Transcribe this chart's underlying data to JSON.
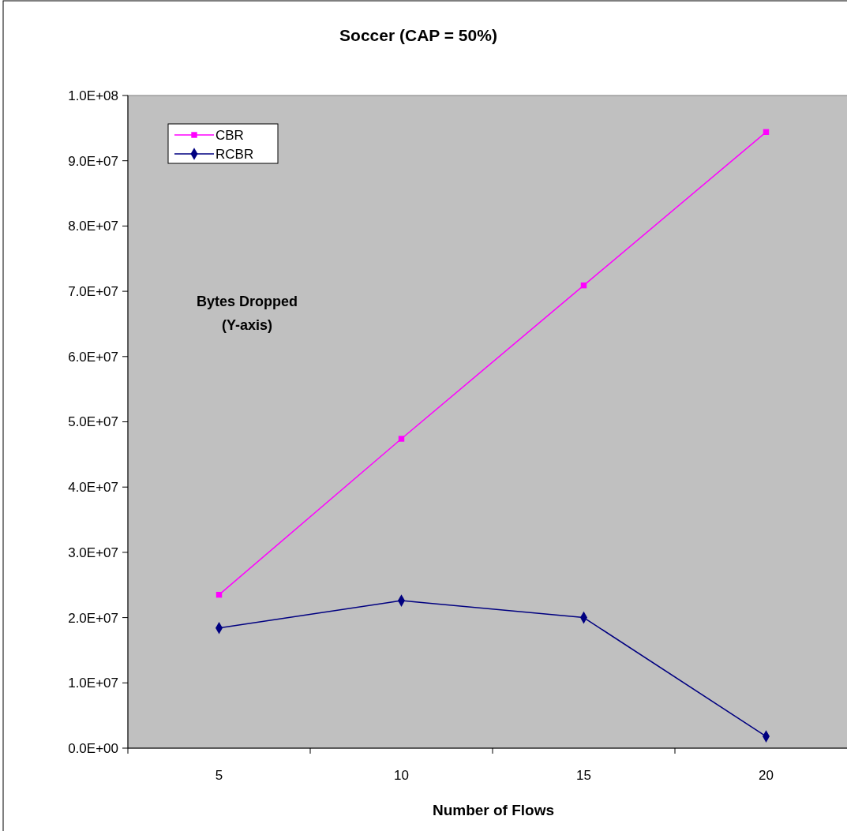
{
  "chart_data": {
    "type": "line",
    "title": "Soccer (CAP = 50%)",
    "xlabel": "Number of Flows",
    "ylabel": "Bytes Dropped\n(Y-axis)",
    "categories": [
      "5",
      "10",
      "15",
      "20"
    ],
    "series": [
      {
        "name": "CBR",
        "color": "#ff00ff",
        "marker": "square",
        "values": [
          23500000,
          47400000,
          70900000,
          94400000
        ]
      },
      {
        "name": "RCBR",
        "color": "#000080",
        "marker": "diamond",
        "values": [
          18400000,
          22600000,
          20000000,
          1800000
        ]
      }
    ],
    "ylim": [
      0,
      100000000
    ],
    "yticks": [
      {
        "value": 0,
        "label": "0.0E+00"
      },
      {
        "value": 10000000,
        "label": "1.0E+07"
      },
      {
        "value": 20000000,
        "label": "2.0E+07"
      },
      {
        "value": 30000000,
        "label": "3.0E+07"
      },
      {
        "value": 40000000,
        "label": "4.0E+07"
      },
      {
        "value": 50000000,
        "label": "5.0E+07"
      },
      {
        "value": 60000000,
        "label": "6.0E+07"
      },
      {
        "value": 70000000,
        "label": "7.0E+07"
      },
      {
        "value": 80000000,
        "label": "8.0E+07"
      },
      {
        "value": 90000000,
        "label": "9.0E+07"
      },
      {
        "value": 100000000,
        "label": "1.0E+08"
      }
    ],
    "grid": false,
    "legend": "top left",
    "line_style": "solid"
  }
}
